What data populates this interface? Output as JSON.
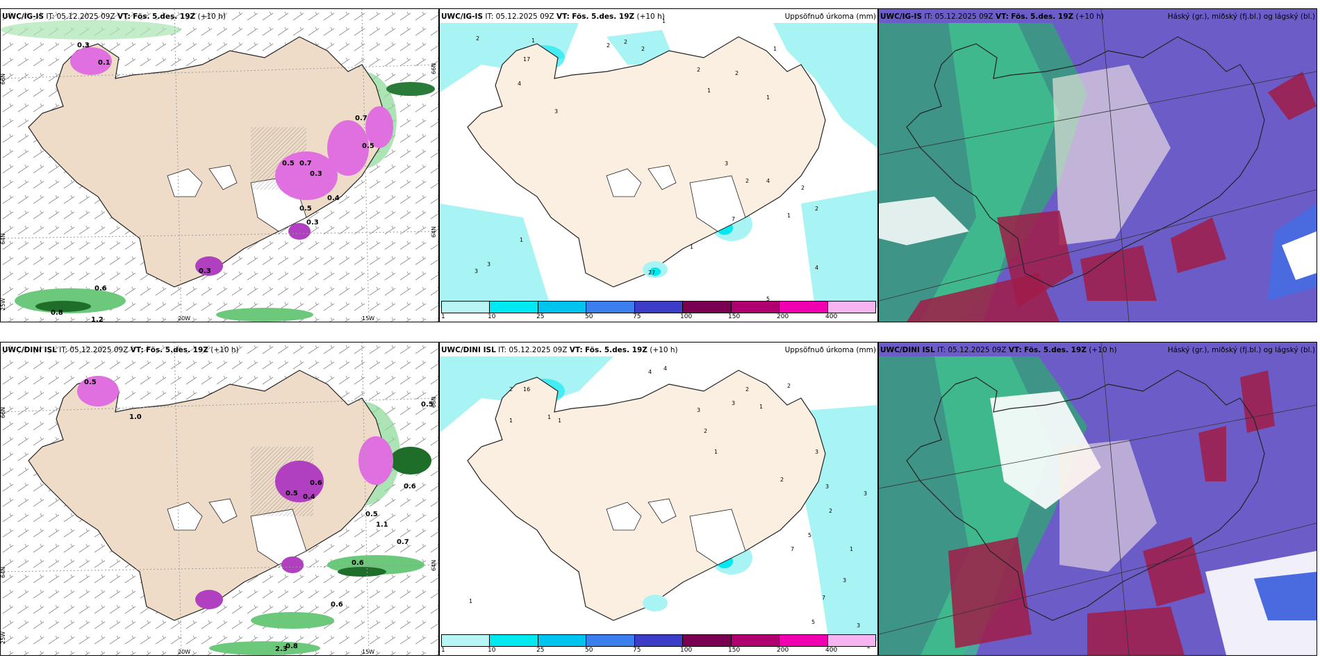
{
  "rows": [
    {
      "model": "UWC/IG-IS",
      "it_label": "IT:",
      "it_value": "05.12.2025 09Z",
      "vt_label": "VT:",
      "vt_value": "Fös. 5.des. 19Z",
      "lead": "(+10 h)",
      "precip_title": "Uppsöfnuð úrkoma (mm)",
      "cloud_title": "Háský (gr.), miðský (fj.bl.) og lágský (bl.)",
      "wind_values": [
        "0.3",
        "0.1",
        "0.7",
        "0.5",
        "0.7",
        "0.3",
        "0.5",
        "0.3",
        "0.5",
        "0.4",
        "0.6",
        "0.8",
        "1.2",
        "0.3"
      ],
      "precip_values": [
        "2",
        "1",
        "2",
        "2",
        "2",
        "1",
        "17",
        "4",
        "3",
        "2",
        "1",
        "2",
        "1",
        "1",
        "3",
        "2",
        "4",
        "2",
        "2",
        "1",
        "4",
        "3",
        "1",
        "1",
        "3",
        "5",
        "27",
        "7"
      ],
      "lat_labels": [
        "66N",
        "64N",
        "25W"
      ],
      "lon_labels": [
        "20W",
        "15W"
      ],
      "right_lat_labels": [
        "66N",
        "64N"
      ]
    },
    {
      "model": "UWC/DINI ISL",
      "it_label": "IT:",
      "it_value": "05.12.2025 09Z",
      "vt_label": "VT:",
      "vt_value": "Fös. 5.des. 19Z",
      "lead": "(+10 h)",
      "precip_title": "Uppsöfnuð úrkoma (mm)",
      "cloud_title": "Háský (gr.), miðský (fj.bl.) og lágský (bl.)",
      "wind_values": [
        "0.5",
        "1.0",
        "0.5",
        "0.4",
        "0.6",
        "0.5",
        "1.1",
        "0.7",
        "0.6",
        "0.6",
        "0.8",
        "0.6",
        "2.3",
        "0.5"
      ],
      "precip_values": [
        "4",
        "4",
        "2",
        "16",
        "1",
        "1",
        "1",
        "3",
        "2",
        "1",
        "3",
        "2",
        "1",
        "2",
        "3",
        "3",
        "2",
        "1",
        "3",
        "3",
        "2",
        "5",
        "7",
        "3",
        "7",
        "5",
        "2",
        "1",
        "7"
      ],
      "lat_labels": [
        "66N",
        "64N",
        "25W"
      ],
      "lon_labels": [
        "20W",
        "15W"
      ],
      "right_lat_labels": [
        "66N",
        "64N"
      ]
    }
  ],
  "colorbar": {
    "ticks": [
      "1",
      "10",
      "25",
      "50",
      "75",
      "100",
      "150",
      "200",
      "400"
    ],
    "colors": [
      "#b8f6f6",
      "#00e8f0",
      "#00c4f0",
      "#3a7ef0",
      "#3c3cc8",
      "#7a0052",
      "#b00070",
      "#f000b0",
      "#f8b4f0"
    ]
  },
  "colors": {
    "land": "#eedcc8",
    "land_light": "#fbefe2",
    "coast": "#222222",
    "wind_green": "#7fd98a",
    "wind_dark": "#1e6e2a",
    "precip_pink": "#e070e0",
    "precip_cyan": "#a8f4f4",
    "cloud_purple": "#6c5cc8",
    "cloud_green": "#40c890",
    "cloud_red": "#a01c48",
    "cloud_blue": "#4a6ae0"
  }
}
